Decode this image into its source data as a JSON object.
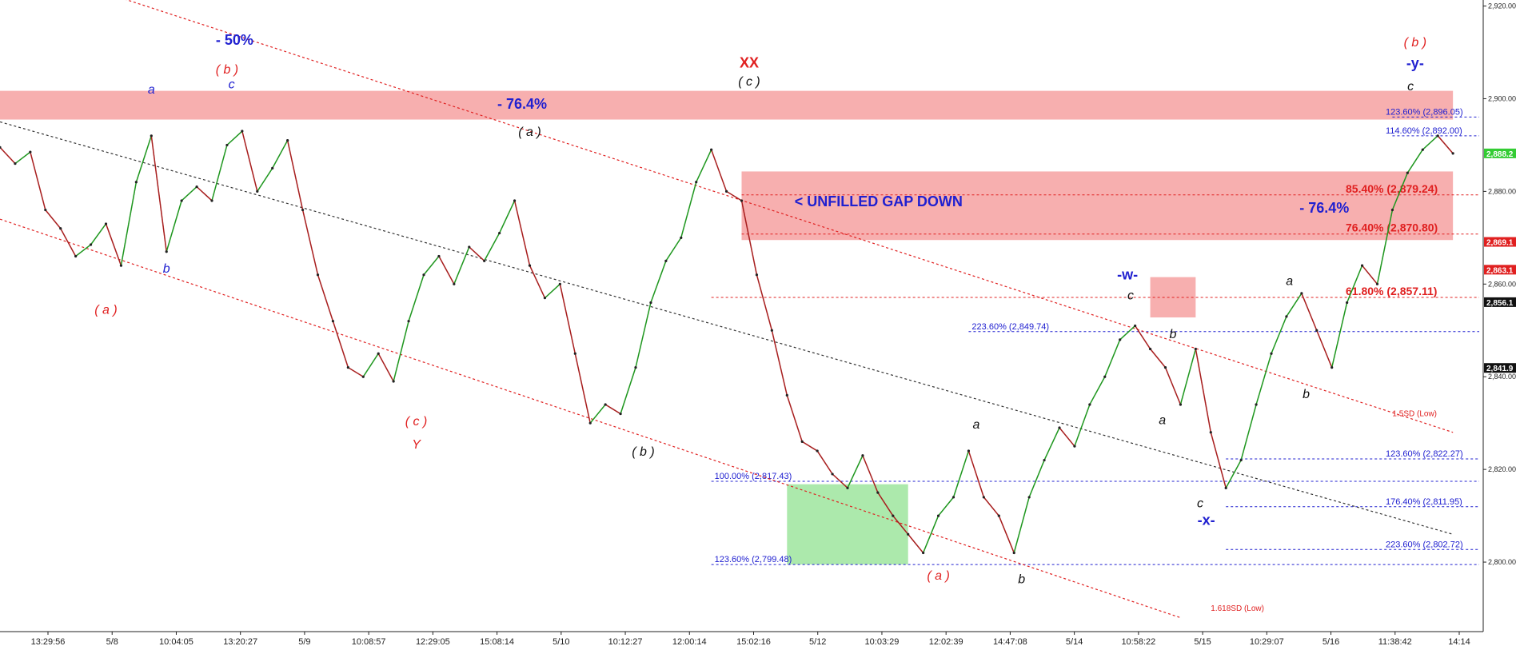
{
  "chart_data": {
    "type": "line",
    "title": "",
    "xlabel": "",
    "ylabel": "",
    "ylim": [
      2785,
      2921.3
    ],
    "y_ticks": [
      2800,
      2820,
      2840,
      2860,
      2880,
      2900,
      2920
    ],
    "y_tick_labels": [
      "2,800.00",
      "2,820.00",
      "2,840.00",
      "2,860.00",
      "2,880.00",
      "2,900.00",
      "2,920.00"
    ],
    "x_tick_labels": [
      "13:29:56",
      "5/8",
      "10:04:05",
      "13:20:27",
      "5/9",
      "10:08:57",
      "12:29:05",
      "15:08:14",
      "5/10",
      "10:12:27",
      "12:00:14",
      "15:02:16",
      "5/12",
      "10:03:29",
      "12:02:39",
      "14:47:08",
      "5/14",
      "10:58:22",
      "5/15",
      "10:29:07",
      "5/16",
      "11:38:42",
      "14:14"
    ],
    "grid": false,
    "price_series": [
      {
        "t": 0,
        "y": 2889.5
      },
      {
        "t": 1,
        "y": 2886.0
      },
      {
        "t": 2,
        "y": 2888.5
      },
      {
        "t": 3,
        "y": 2876.0
      },
      {
        "t": 4,
        "y": 2872.0
      },
      {
        "t": 5,
        "y": 2866.0
      },
      {
        "t": 6,
        "y": 2868.5
      },
      {
        "t": 7,
        "y": 2873.0
      },
      {
        "t": 8,
        "y": 2864.0
      },
      {
        "t": 9,
        "y": 2882.0
      },
      {
        "t": 10,
        "y": 2892.0
      },
      {
        "t": 11,
        "y": 2867.0
      },
      {
        "t": 12,
        "y": 2878.0
      },
      {
        "t": 13,
        "y": 2881.0
      },
      {
        "t": 14,
        "y": 2878.0
      },
      {
        "t": 15,
        "y": 2890.0
      },
      {
        "t": 16,
        "y": 2893.0
      },
      {
        "t": 17,
        "y": 2880.0
      },
      {
        "t": 18,
        "y": 2885.0
      },
      {
        "t": 19,
        "y": 2891.0
      },
      {
        "t": 20,
        "y": 2876.0
      },
      {
        "t": 21,
        "y": 2862.0
      },
      {
        "t": 22,
        "y": 2852.0
      },
      {
        "t": 23,
        "y": 2842.0
      },
      {
        "t": 24,
        "y": 2840.0
      },
      {
        "t": 25,
        "y": 2845.0
      },
      {
        "t": 26,
        "y": 2839.0
      },
      {
        "t": 27,
        "y": 2852.0
      },
      {
        "t": 28,
        "y": 2862.0
      },
      {
        "t": 29,
        "y": 2866.0
      },
      {
        "t": 30,
        "y": 2860.0
      },
      {
        "t": 31,
        "y": 2868.0
      },
      {
        "t": 32,
        "y": 2865.0
      },
      {
        "t": 33,
        "y": 2871.0
      },
      {
        "t": 34,
        "y": 2878.0
      },
      {
        "t": 35,
        "y": 2864.0
      },
      {
        "t": 36,
        "y": 2857.0
      },
      {
        "t": 37,
        "y": 2860.0
      },
      {
        "t": 38,
        "y": 2845.0
      },
      {
        "t": 39,
        "y": 2830.0
      },
      {
        "t": 40,
        "y": 2834.0
      },
      {
        "t": 41,
        "y": 2832.0
      },
      {
        "t": 42,
        "y": 2842.0
      },
      {
        "t": 43,
        "y": 2856.0
      },
      {
        "t": 44,
        "y": 2865.0
      },
      {
        "t": 45,
        "y": 2870.0
      },
      {
        "t": 46,
        "y": 2882.0
      },
      {
        "t": 47,
        "y": 2889.0
      },
      {
        "t": 48,
        "y": 2880.0
      },
      {
        "t": 49,
        "y": 2878.0
      },
      {
        "t": 50,
        "y": 2862.0
      },
      {
        "t": 51,
        "y": 2850.0
      },
      {
        "t": 52,
        "y": 2836.0
      },
      {
        "t": 53,
        "y": 2826.0
      },
      {
        "t": 54,
        "y": 2824.0
      },
      {
        "t": 55,
        "y": 2819.0
      },
      {
        "t": 56,
        "y": 2816.0
      },
      {
        "t": 57,
        "y": 2823.0
      },
      {
        "t": 58,
        "y": 2815.0
      },
      {
        "t": 59,
        "y": 2810.0
      },
      {
        "t": 60,
        "y": 2806.0
      },
      {
        "t": 61,
        "y": 2802.0
      },
      {
        "t": 62,
        "y": 2810.0
      },
      {
        "t": 63,
        "y": 2814.0
      },
      {
        "t": 64,
        "y": 2824.0
      },
      {
        "t": 65,
        "y": 2814.0
      },
      {
        "t": 66,
        "y": 2810.0
      },
      {
        "t": 67,
        "y": 2802.0
      },
      {
        "t": 68,
        "y": 2814.0
      },
      {
        "t": 69,
        "y": 2822.0
      },
      {
        "t": 70,
        "y": 2829.0
      },
      {
        "t": 71,
        "y": 2825.0
      },
      {
        "t": 72,
        "y": 2834.0
      },
      {
        "t": 73,
        "y": 2840.0
      },
      {
        "t": 74,
        "y": 2848.0
      },
      {
        "t": 75,
        "y": 2851.0
      },
      {
        "t": 76,
        "y": 2846.0
      },
      {
        "t": 77,
        "y": 2842.0
      },
      {
        "t": 78,
        "y": 2834.0
      },
      {
        "t": 79,
        "y": 2846.0
      },
      {
        "t": 80,
        "y": 2828.0
      },
      {
        "t": 81,
        "y": 2816.0
      },
      {
        "t": 82,
        "y": 2822.0
      },
      {
        "t": 83,
        "y": 2834.0
      },
      {
        "t": 84,
        "y": 2845.0
      },
      {
        "t": 85,
        "y": 2853.0
      },
      {
        "t": 86,
        "y": 2858.0
      },
      {
        "t": 87,
        "y": 2850.0
      },
      {
        "t": 88,
        "y": 2842.0
      },
      {
        "t": 89,
        "y": 2856.0
      },
      {
        "t": 90,
        "y": 2864.0
      },
      {
        "t": 91,
        "y": 2860.0
      },
      {
        "t": 92,
        "y": 2876.0
      },
      {
        "t": 93,
        "y": 2884.0
      },
      {
        "t": 94,
        "y": 2889.0
      },
      {
        "t": 95,
        "y": 2892.0
      },
      {
        "t": 96,
        "y": 2888.2
      }
    ],
    "zones": [
      {
        "color": "#f06060",
        "from_t": 0,
        "to_t": 96,
        "y_low": 2895.5,
        "y_high": 2901.7
      },
      {
        "color": "#f06060",
        "from_t": 49,
        "to_t": 96,
        "y_low": 2869.5,
        "y_high": 2884.3
      },
      {
        "color": "#f06060",
        "from_t": 76,
        "to_t": 79,
        "y_low": 2852.8,
        "y_high": 2861.5
      },
      {
        "color": "#5ad45a",
        "from_t": 52,
        "to_t": 60,
        "y_low": 2799.5,
        "y_high": 2816.8
      }
    ],
    "levels": [
      {
        "label": "123.60% (2,896.05)",
        "value": 2896.05,
        "color": "#2020d0",
        "style": "dotted",
        "size": "small",
        "from_t": 92
      },
      {
        "label": "114.60% (2,892.00)",
        "value": 2892.0,
        "color": "#2020d0",
        "style": "dotted",
        "size": "small",
        "from_t": 92
      },
      {
        "label": "85.40% (2,879.24)",
        "value": 2879.24,
        "color": "#e02020",
        "style": "dotted",
        "size": "large",
        "from_t": 49
      },
      {
        "label": "76.40% (2,870.80)",
        "value": 2870.8,
        "color": "#e02020",
        "style": "dotted",
        "size": "large",
        "from_t": 49
      },
      {
        "label": "61.80% (2,857.11)",
        "value": 2857.11,
        "color": "#e02020",
        "style": "dotted",
        "size": "large",
        "from_t": 47
      },
      {
        "label": "223.60% (2,849.74)",
        "value": 2849.74,
        "color": "#2020d0",
        "style": "dotted",
        "size": "small",
        "from_t": 64
      },
      {
        "label": "123.60% (2,822.27)",
        "value": 2822.27,
        "color": "#2020d0",
        "style": "dotted",
        "size": "small",
        "from_t": 81
      },
      {
        "label": "100.00% (2,817.43)",
        "value": 2817.43,
        "color": "#2020d0",
        "style": "dotted",
        "size": "small",
        "from_t": 47
      },
      {
        "label": "176.40% (2,811.95)",
        "value": 2811.95,
        "color": "#2020d0",
        "style": "dotted",
        "size": "small",
        "from_t": 81
      },
      {
        "label": "223.60% (2,802.72)",
        "value": 2802.72,
        "color": "#2020d0",
        "style": "dotted",
        "size": "small",
        "from_t": 81
      },
      {
        "label": "123.60% (2,799.48)",
        "value": 2799.48,
        "color": "#2020d0",
        "style": "dotted",
        "size": "small",
        "from_t": 47
      }
    ],
    "price_badges": [
      {
        "label": "2,888.2",
        "value": 2888.2,
        "background": "#33cc33",
        "color": "#ffffff"
      },
      {
        "label": "2,869.1",
        "value": 2869.1,
        "background": "#e02020",
        "color": "#ffffff"
      },
      {
        "label": "2,863.1",
        "value": 2863.1,
        "background": "#e02020",
        "color": "#ffffff"
      },
      {
        "label": "2,856.1",
        "value": 2856.1,
        "background": "#111111",
        "color": "#ffffff"
      },
      {
        "label": "2,841.9",
        "value": 2841.9,
        "background": "#111111",
        "color": "#ffffff"
      }
    ],
    "channel_lines": [
      {
        "color": "#e02020",
        "style": "dotted",
        "t1": 4,
        "y1": 2926,
        "t2": 96,
        "y2": 2828
      },
      {
        "color": "#333333",
        "style": "dotted",
        "t1": 0,
        "y1": 2895,
        "t2": 96,
        "y2": 2806
      },
      {
        "color": "#e02020",
        "style": "dotted",
        "t1": 0,
        "y1": 2874,
        "t2": 78,
        "y2": 2788
      }
    ],
    "channel_labels": [
      {
        "text": "1.5SD (Low)",
        "t": 92,
        "y": 2831.5,
        "color": "#e02020"
      },
      {
        "text": "1.618SD (Low)",
        "t": 80,
        "y": 2789.5,
        "color": "#e02020"
      }
    ],
    "wave_labels": [
      {
        "text": "- 50%",
        "t": 15.5,
        "y": 2911.6,
        "color": "#2020d0",
        "size": "large"
      },
      {
        "text": "( b )",
        "t": 15,
        "y": 2905.4,
        "color": "#e02020",
        "size": "medium"
      },
      {
        "text": "a",
        "t": 10,
        "y": 2901.1,
        "color": "#2020d0",
        "size": "medium"
      },
      {
        "text": "c",
        "t": 15.3,
        "y": 2902.2,
        "color": "#2020d0",
        "size": "medium"
      },
      {
        "text": "- 76.4%",
        "t": 34.5,
        "y": 2897.8,
        "color": "#2020d0",
        "size": "large"
      },
      {
        "text": "( a )",
        "t": 35,
        "y": 2892.0,
        "color": "#111111",
        "size": "medium"
      },
      {
        "text": "XX",
        "t": 49.5,
        "y": 2906.7,
        "color": "#e02020",
        "size": "large"
      },
      {
        "text": "( c )",
        "t": 49.5,
        "y": 2902.8,
        "color": "#111111",
        "size": "medium"
      },
      {
        "text": "b",
        "t": 11,
        "y": 2862.5,
        "color": "#2020d0",
        "size": "medium"
      },
      {
        "text": "( a )",
        "t": 7,
        "y": 2853.6,
        "color": "#e02020",
        "size": "medium"
      },
      {
        "text": "( c )",
        "t": 27.5,
        "y": 2829.5,
        "color": "#e02020",
        "size": "medium"
      },
      {
        "text": "Y",
        "t": 27.5,
        "y": 2824.5,
        "color": "#e02020",
        "size": "medium"
      },
      {
        "text": "( b )",
        "t": 42.5,
        "y": 2823.0,
        "color": "#111111",
        "size": "medium"
      },
      {
        "text": "< UNFILLED GAP DOWN",
        "t": 52.5,
        "y": 2876.8,
        "color": "#2020d0",
        "size": "large",
        "anchor": "start"
      },
      {
        "text": "( a )",
        "t": 62,
        "y": 2796.2,
        "color": "#e02020",
        "size": "medium"
      },
      {
        "text": "a",
        "t": 64.5,
        "y": 2828.8,
        "color": "#111111",
        "size": "medium"
      },
      {
        "text": "b",
        "t": 67.5,
        "y": 2795.4,
        "color": "#111111",
        "size": "medium"
      },
      {
        "text": "-w-",
        "t": 74.5,
        "y": 2861.0,
        "color": "#2020d0",
        "size": "large"
      },
      {
        "text": "c",
        "t": 74.7,
        "y": 2856.7,
        "color": "#111111",
        "size": "medium"
      },
      {
        "text": "b",
        "t": 77.5,
        "y": 2848.3,
        "color": "#111111",
        "size": "medium"
      },
      {
        "text": "a",
        "t": 76.8,
        "y": 2829.8,
        "color": "#111111",
        "size": "medium"
      },
      {
        "text": "c",
        "t": 79.3,
        "y": 2811.8,
        "color": "#111111",
        "size": "medium"
      },
      {
        "text": "-x-",
        "t": 79.7,
        "y": 2808.0,
        "color": "#2020d0",
        "size": "large"
      },
      {
        "text": "- 76.4%",
        "t": 87.5,
        "y": 2875.4,
        "color": "#2020d0",
        "size": "large"
      },
      {
        "text": "a",
        "t": 85.2,
        "y": 2859.8,
        "color": "#111111",
        "size": "medium"
      },
      {
        "text": "b",
        "t": 86.3,
        "y": 2835.4,
        "color": "#111111",
        "size": "medium"
      },
      {
        "text": "( b )",
        "t": 93.5,
        "y": 2911.3,
        "color": "#e02020",
        "size": "medium"
      },
      {
        "text": "-y-",
        "t": 93.5,
        "y": 2906.6,
        "color": "#2020d0",
        "size": "large"
      },
      {
        "text": "c",
        "t": 93.2,
        "y": 2901.8,
        "color": "#111111",
        "size": "medium"
      }
    ]
  }
}
